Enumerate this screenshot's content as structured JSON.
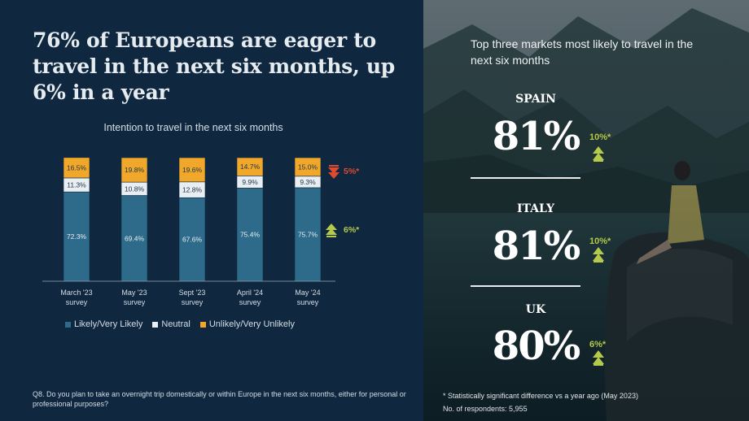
{
  "title": "76% of Europeans are eager to travel in the next six months, up 6% in a year",
  "colors": {
    "likely": "#2e6b8a",
    "neutral": "#e8eef2",
    "unlikely": "#f0a72a",
    "down": "#e04a2f",
    "up": "#b5c94a"
  },
  "chart_data": {
    "type": "bar",
    "stacked": true,
    "title": "Intention to travel in the next six months",
    "categories": [
      "March '23 survey",
      "May '23 survey",
      "Sept '23 survey",
      "April '24 survey",
      "May '24 survey"
    ],
    "series": [
      {
        "name": "Likely/Very Likely",
        "values": [
          72.3,
          69.4,
          67.6,
          75.4,
          75.7
        ],
        "labels": [
          "72.3%",
          "69.4%",
          "67.6%",
          "75.4%",
          "75.7%"
        ]
      },
      {
        "name": "Neutral",
        "values": [
          11.3,
          10.8,
          12.8,
          9.9,
          9.3
        ],
        "labels": [
          "11.3%",
          "10.8%",
          "12.8%",
          "9.9%",
          "9.3%"
        ]
      },
      {
        "name": "Unlikely/Very Unlikely",
        "values": [
          16.5,
          19.8,
          19.6,
          14.7,
          15.0
        ],
        "labels": [
          "16.5%",
          "19.8%",
          "19.6%",
          "14.7%",
          "15.0%"
        ]
      }
    ],
    "ylim": [
      0,
      100
    ],
    "annotations": [
      {
        "text": "5%*",
        "direction": "down",
        "series": "Unlikely/Very Unlikely"
      },
      {
        "text": "6%*",
        "direction": "up",
        "series": "Likely/Very Likely"
      }
    ]
  },
  "legend": [
    "Likely/Very Likely",
    "Neutral",
    "Unlikely/Very Unlikely"
  ],
  "footnote": "Q8. Do you plan to take an overnight trip domestically or within Europe in the next six months, either for personal or professional purposes?",
  "right": {
    "title": "Top three markets most likely to travel in the next six months",
    "markets": [
      {
        "country": "SPAIN",
        "percent": "81%",
        "change": "10%*"
      },
      {
        "country": "ITALY",
        "percent": "81%",
        "change": "10%*"
      },
      {
        "country": "UK",
        "percent": "80%",
        "change": "6%*"
      }
    ],
    "note": "* Statistically significant difference vs a year ago (May 2023)",
    "respondents": "No. of respondents: 5,955"
  }
}
